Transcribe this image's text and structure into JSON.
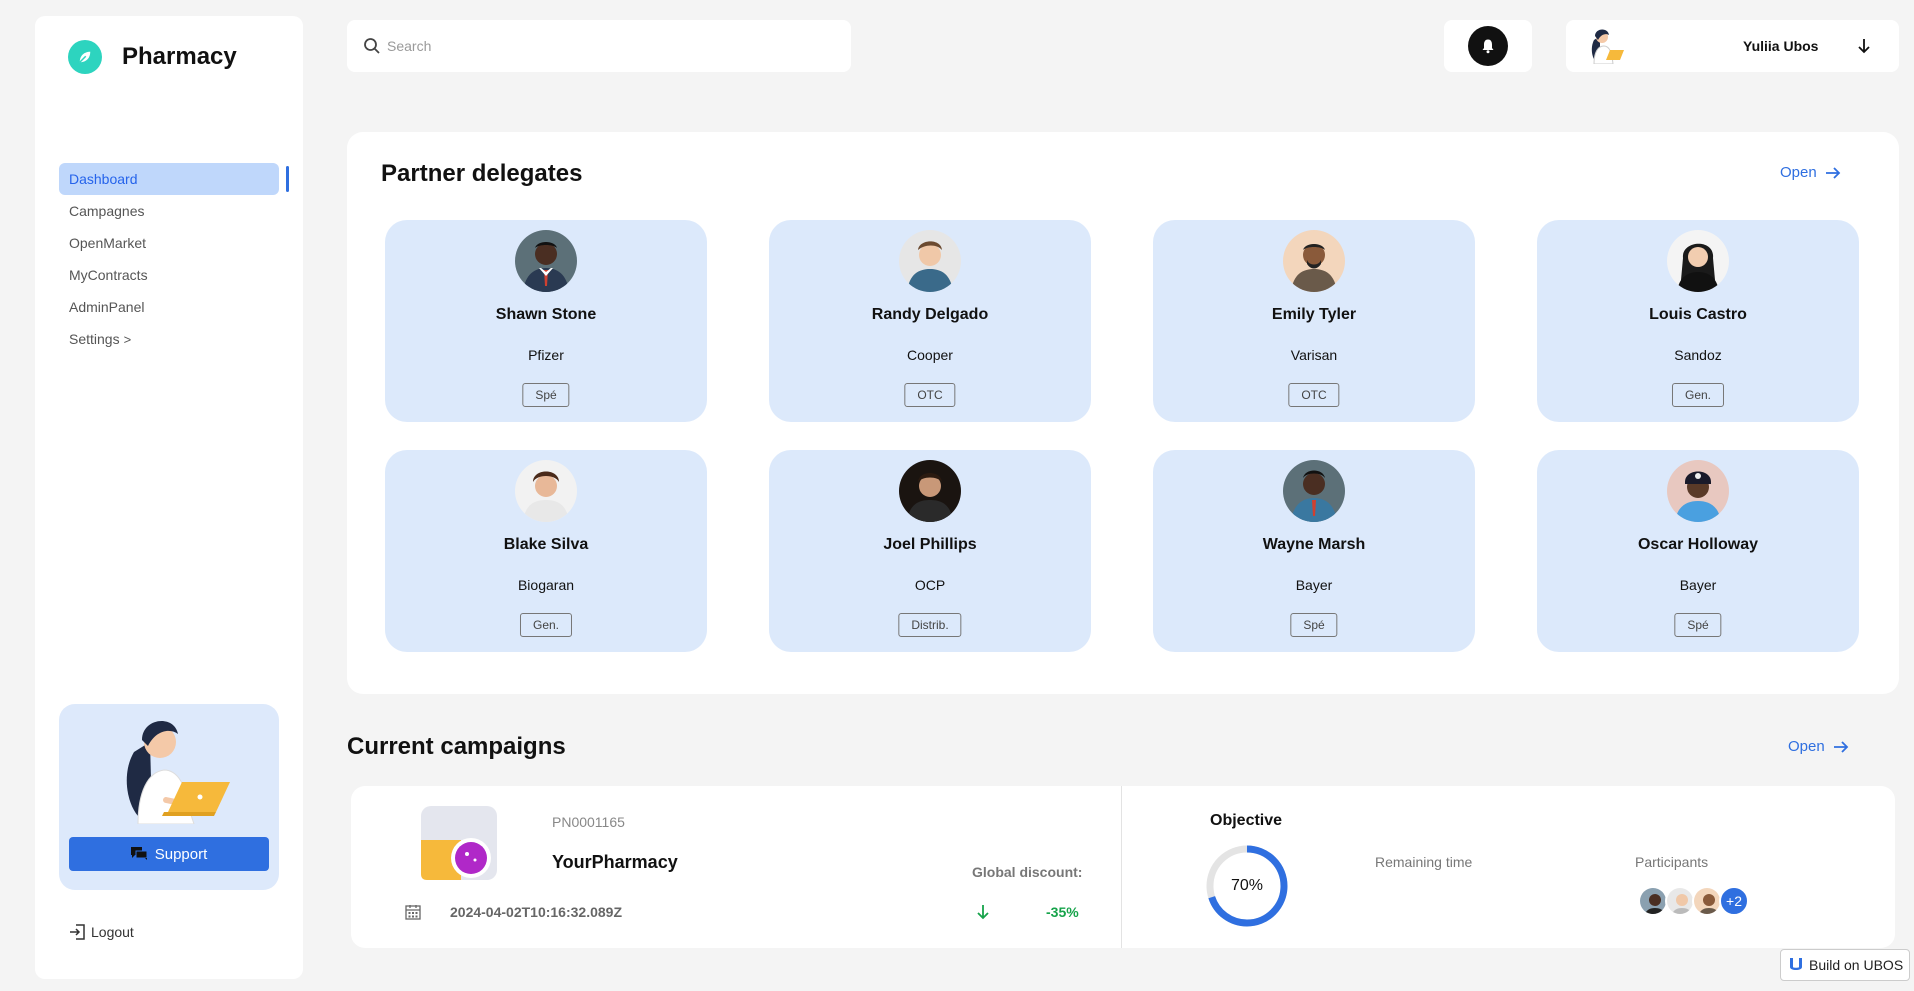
{
  "brand": {
    "name": "Pharmacy"
  },
  "sidebar": {
    "items": [
      {
        "label": "Dashboard",
        "active": true
      },
      {
        "label": "Campagnes"
      },
      {
        "label": "OpenMarket"
      },
      {
        "label": "MyContracts"
      },
      {
        "label": "AdminPanel"
      },
      {
        "label": "Settings",
        "chevron": ">"
      }
    ],
    "support_label": "Support",
    "logout_label": "Logout"
  },
  "search": {
    "placeholder": "Search",
    "value": ""
  },
  "user": {
    "name": "Yuliia Ubos"
  },
  "delegates": {
    "title": "Partner delegates",
    "open_label": "Open",
    "cards": [
      {
        "name": "Shawn Stone",
        "company": "Pfizer",
        "tag": "Spé"
      },
      {
        "name": "Randy Delgado",
        "company": "Cooper",
        "tag": "OTC"
      },
      {
        "name": "Emily Tyler",
        "company": "Varisan",
        "tag": "OTC"
      },
      {
        "name": "Louis Castro",
        "company": "Sandoz",
        "tag": "Gen."
      },
      {
        "name": "Blake Silva",
        "company": "Biogaran",
        "tag": "Gen."
      },
      {
        "name": "Joel Phillips",
        "company": "OCP",
        "tag": "Distrib."
      },
      {
        "name": "Wayne Marsh",
        "company": "Bayer",
        "tag": "Spé"
      },
      {
        "name": "Oscar Holloway",
        "company": "Bayer",
        "tag": "Spé"
      }
    ]
  },
  "campaigns": {
    "title": "Current campaigns",
    "open_label": "Open",
    "items": [
      {
        "code": "PN0001165",
        "name": "YourPharmacy",
        "discount_label": "Global discount:",
        "date": "2024-04-02T10:16:32.089Z",
        "discount": "-35%",
        "objective_label": "Objective",
        "objective_value": "70%",
        "objective_fraction": 0.7,
        "remaining_label": "Remaining time",
        "participants_label": "Participants",
        "participants_more": "+2"
      }
    ]
  },
  "footer": {
    "ubos_label": "Build on UBOS"
  },
  "colors": {
    "accent": "#2f6fe0",
    "card_bg": "#dce9fb",
    "brand_logo": "#2dd4bf",
    "discount": "#16a34a"
  }
}
